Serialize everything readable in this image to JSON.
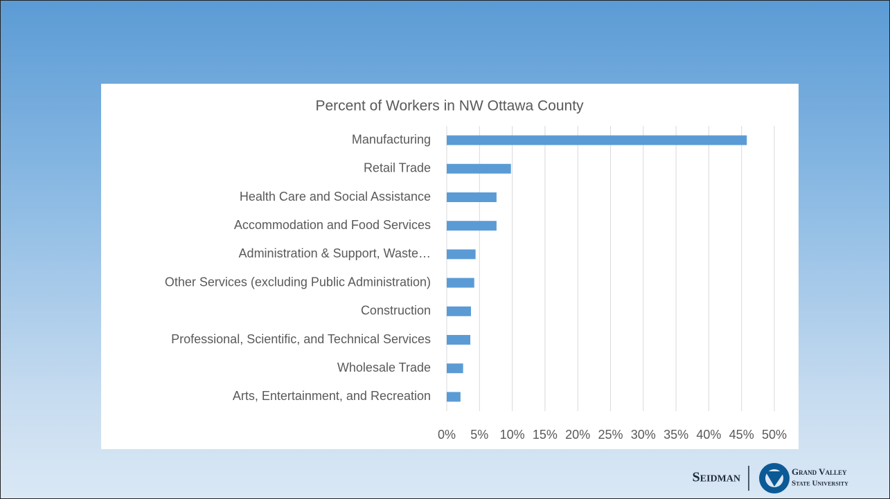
{
  "chart_data": {
    "type": "bar",
    "orientation": "horizontal",
    "title": "Percent of Workers in NW Ottawa County",
    "categories": [
      "Manufacturing",
      "Retail Trade",
      "Health Care and Social Assistance",
      "Accommodation and Food Services",
      "Administration & Support, Waste…",
      "Other Services (excluding Public Administration)",
      "Construction",
      "Professional, Scientific, and Technical Services",
      "Wholesale Trade",
      "Arts, Entertainment, and Recreation"
    ],
    "values": [
      45.8,
      9.8,
      7.6,
      7.6,
      4.4,
      4.2,
      3.7,
      3.6,
      2.5,
      2.1
    ],
    "color": "#5b9bd5",
    "xlim": [
      0,
      50
    ],
    "xticks": [
      {
        "value": 0,
        "label": "0%"
      },
      {
        "value": 5,
        "label": "5%"
      },
      {
        "value": 10,
        "label": "10%"
      },
      {
        "value": 15,
        "label": "15%"
      },
      {
        "value": 20,
        "label": "20%"
      },
      {
        "value": 25,
        "label": "25%"
      },
      {
        "value": 30,
        "label": "30%"
      },
      {
        "value": 35,
        "label": "35%"
      },
      {
        "value": 40,
        "label": "40%"
      },
      {
        "value": 45,
        "label": "45%"
      },
      {
        "value": 50,
        "label": "50%"
      }
    ],
    "grid": true
  },
  "footer": {
    "brand": "Seidman",
    "university_top": "Grand Valley",
    "university_bottom": "State University"
  }
}
